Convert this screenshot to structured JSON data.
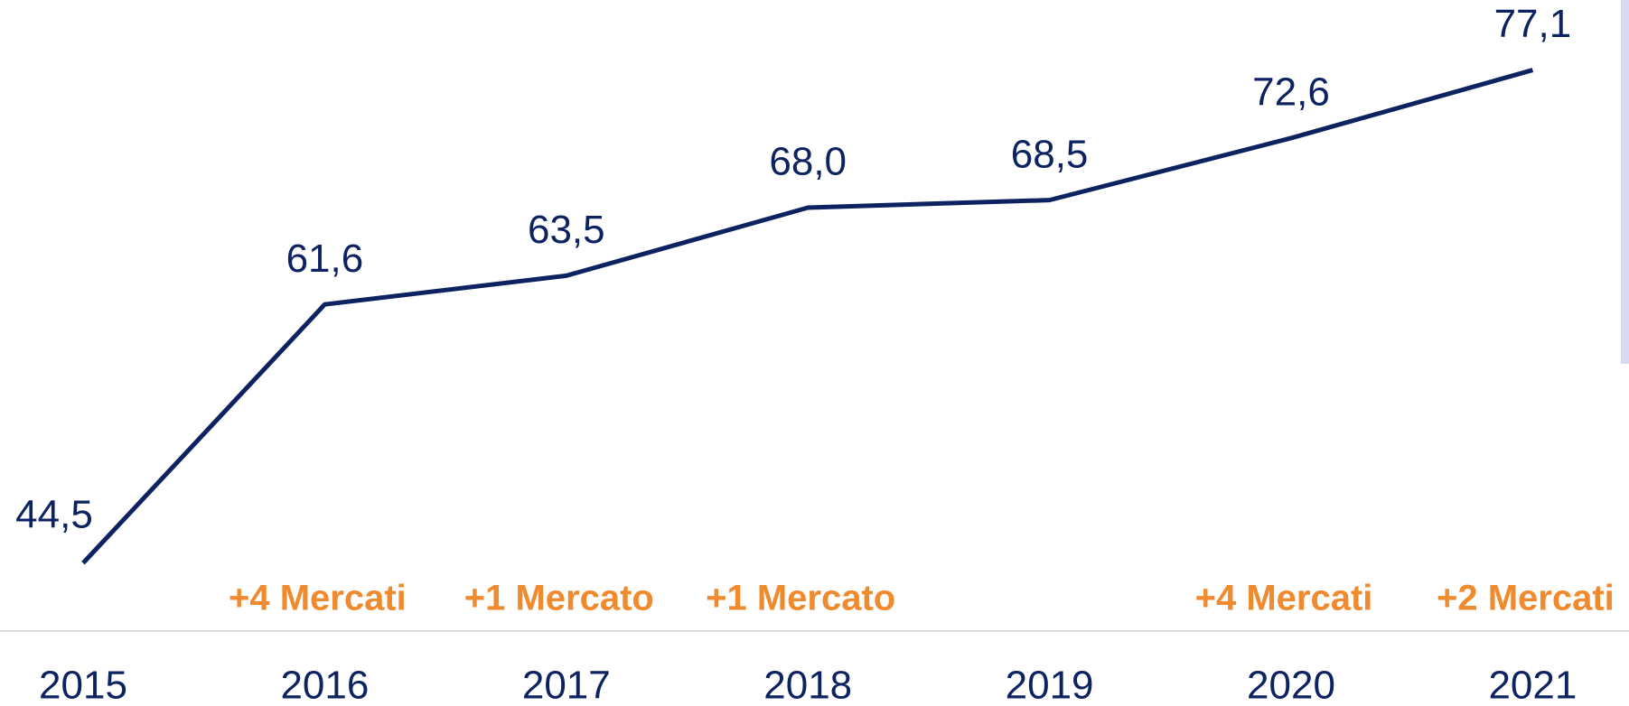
{
  "chart_data": {
    "type": "line",
    "categories": [
      "2015",
      "2016",
      "2017",
      "2018",
      "2019",
      "2020",
      "2021"
    ],
    "series": [
      {
        "color": "#0d2260",
        "values": [
          44.5,
          61.6,
          63.5,
          68.0,
          68.5,
          72.6,
          77.1
        ],
        "value_labels": [
          "44,5",
          "61,6",
          "63,5",
          "68,0",
          "68,5",
          "72,6",
          "77,1"
        ]
      }
    ],
    "annotations": [
      null,
      "+4 Mercati",
      "+1 Mercato",
      "+1 Mercato",
      null,
      "+4 Mercati",
      "+2 Mercati"
    ],
    "ylim": [
      40,
      80
    ]
  }
}
